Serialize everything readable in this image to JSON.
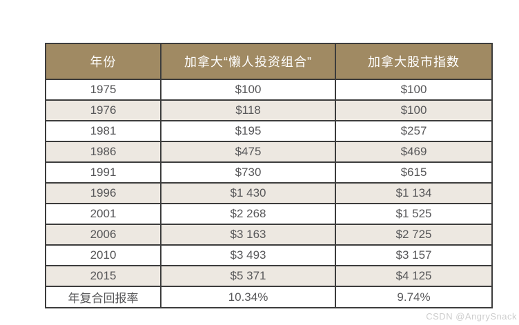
{
  "page": {
    "watermark": "CSDN @AngrySnack"
  },
  "colors": {
    "header_bg": "#a08a63",
    "header_text": "#ffffff",
    "row_bg": "#ffffff",
    "row_alt_bg": "#ede8e1",
    "border": "#3c3c3c",
    "cell_text": "#58585a",
    "watermark_text": "#cdcdcd"
  },
  "table": {
    "headers": [
      "年份",
      "加拿大“懒人投资组合”",
      "加拿大股市指数"
    ],
    "rows": [
      [
        "1975",
        "$100",
        "$100"
      ],
      [
        "1976",
        "$118",
        "$100"
      ],
      [
        "1981",
        "$195",
        "$257"
      ],
      [
        "1986",
        "$475",
        "$469"
      ],
      [
        "1991",
        "$730",
        "$615"
      ],
      [
        "1996",
        "$1 430",
        "$1 134"
      ],
      [
        "2001",
        "$2 268",
        "$1 525"
      ],
      [
        "2006",
        "$3 163",
        "$2 725"
      ],
      [
        "2010",
        "$3 493",
        "$3 157"
      ],
      [
        "2015",
        "$5 371",
        "$4 125"
      ],
      [
        "年复合回报率",
        "10.34%",
        "9.74%"
      ]
    ]
  },
  "chart_data": {
    "type": "table",
    "title": "",
    "columns": [
      "年份",
      "加拿大“懒人投资组合”",
      "加拿大股市指数"
    ],
    "categories": [
      "1975",
      "1976",
      "1981",
      "1986",
      "1991",
      "1996",
      "2001",
      "2006",
      "2010",
      "2015"
    ],
    "series": [
      {
        "name": "加拿大“懒人投资组合”",
        "values": [
          100,
          118,
          195,
          475,
          730,
          1430,
          2268,
          3163,
          3493,
          5371
        ],
        "annual_compound_return_label": "年复合回报率",
        "annual_compound_return": "10.34%"
      },
      {
        "name": "加拿大股市指数",
        "values": [
          100,
          100,
          257,
          469,
          615,
          1134,
          1525,
          2725,
          3157,
          4125
        ],
        "annual_compound_return_label": "年复合回报率",
        "annual_compound_return": "9.74%"
      }
    ]
  }
}
